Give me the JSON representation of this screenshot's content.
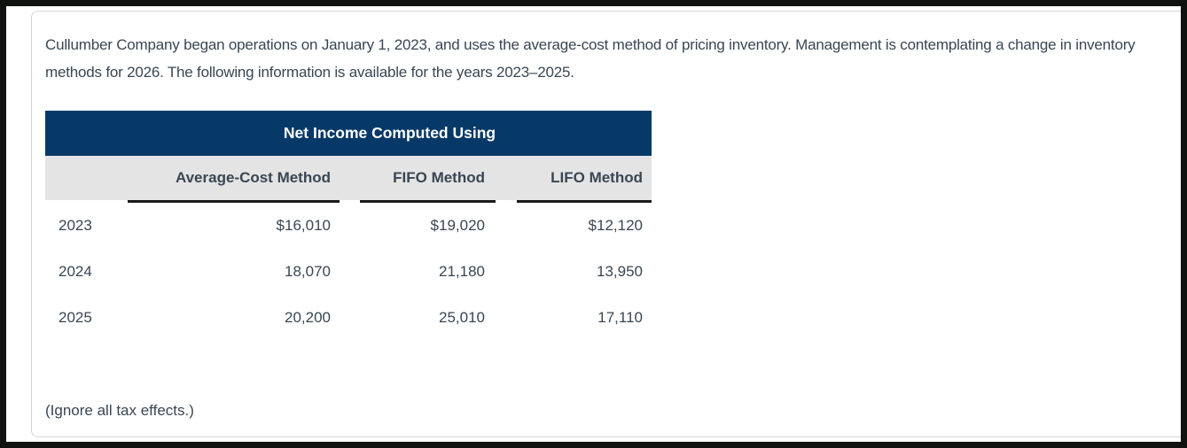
{
  "problem": {
    "statement": "Cullumber Company began operations on January 1, 2023, and uses the average-cost method of pricing inventory. Management is contemplating a change in inventory methods for 2026. The following information is available for the years 2023–2025.",
    "note": "(Ignore all tax effects.)"
  },
  "table": {
    "title": "Net Income Computed Using",
    "columns": [
      "Average-Cost Method",
      "FIFO Method",
      "LIFO Method"
    ],
    "rows": [
      {
        "year": "2023",
        "avg": "$16,010",
        "fifo": "$19,020",
        "lifo": "$12,120"
      },
      {
        "year": "2024",
        "avg": "18,070",
        "fifo": "21,180",
        "lifo": "13,950"
      },
      {
        "year": "2025",
        "avg": "20,200",
        "fifo": "25,010",
        "lifo": "17,110"
      }
    ]
  },
  "colors": {
    "title_bg": "#073968",
    "subheader_bg": "#e4e4e4",
    "underline": "#1a1a1a",
    "text": "#394653",
    "card_border": "#d5d5d5"
  }
}
